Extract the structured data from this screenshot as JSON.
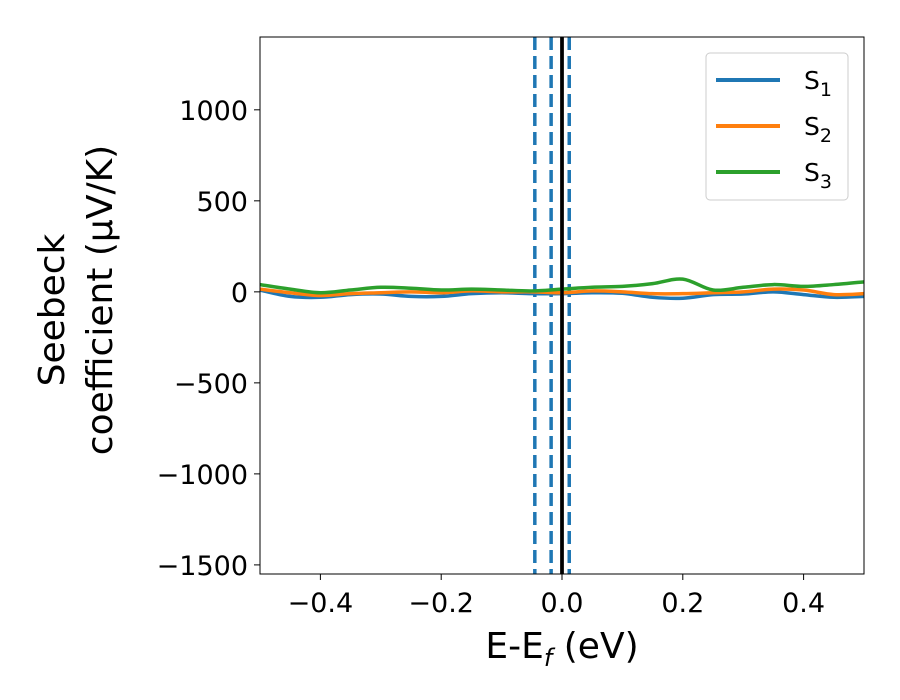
{
  "chart_data": {
    "type": "line",
    "xlabel": "E-E",
    "xlabel_sub": "f",
    "xlabel_unit": " (eV)",
    "ylabel_line1": "Seebeck",
    "ylabel_line2": "coefficient  (μV/K)",
    "xlim": [
      -0.5,
      0.5
    ],
    "ylim": [
      -1550,
      1400
    ],
    "xticks": [
      -0.4,
      -0.2,
      0.0,
      0.2,
      0.4
    ],
    "xtick_labels": [
      "−0.4",
      "−0.2",
      "0.0",
      "0.2",
      "0.4"
    ],
    "yticks": [
      -1500,
      -1000,
      -500,
      0,
      500,
      1000
    ],
    "ytick_labels": [
      "−1500",
      "−1000",
      "−500",
      "0",
      "500",
      "1000"
    ],
    "grid": false,
    "legend_position": "top-right",
    "vlines": [
      {
        "x": -0.045,
        "style": "dashed",
        "color": "#1f77b4"
      },
      {
        "x": -0.018,
        "style": "dashed",
        "color": "#1f77b4"
      },
      {
        "x": 0.012,
        "style": "dashed",
        "color": "#1f77b4"
      },
      {
        "x": 0.0,
        "style": "solid",
        "color": "#000000"
      }
    ],
    "series": [
      {
        "name": "S",
        "sub": "1",
        "color": "#1f77b4",
        "x": [
          -0.5,
          -0.45,
          -0.4,
          -0.35,
          -0.3,
          -0.25,
          -0.2,
          -0.15,
          -0.1,
          -0.05,
          0.0,
          0.05,
          0.1,
          0.15,
          0.2,
          0.25,
          0.3,
          0.35,
          0.4,
          0.45,
          0.5
        ],
        "y": [
          10,
          -25,
          -30,
          -15,
          -12,
          -25,
          -25,
          -10,
          -5,
          -10,
          -10,
          -5,
          -8,
          -30,
          -35,
          -15,
          -12,
          0,
          -15,
          -30,
          -25
        ]
      },
      {
        "name": "S",
        "sub": "2",
        "color": "#ff7f0e",
        "x": [
          -0.5,
          -0.45,
          -0.4,
          -0.35,
          -0.3,
          -0.25,
          -0.2,
          -0.15,
          -0.1,
          -0.05,
          0.0,
          0.05,
          0.1,
          0.15,
          0.2,
          0.25,
          0.3,
          0.35,
          0.4,
          0.45,
          0.5
        ],
        "y": [
          15,
          -5,
          -20,
          -10,
          -5,
          0,
          -5,
          5,
          0,
          0,
          -5,
          5,
          0,
          -10,
          -10,
          -5,
          0,
          15,
          10,
          -15,
          -10
        ]
      },
      {
        "name": "S",
        "sub": "3",
        "color": "#2ca02c",
        "x": [
          -0.5,
          -0.45,
          -0.4,
          -0.35,
          -0.3,
          -0.25,
          -0.2,
          -0.15,
          -0.1,
          -0.05,
          0.0,
          0.05,
          0.1,
          0.15,
          0.2,
          0.25,
          0.3,
          0.35,
          0.4,
          0.45,
          0.5
        ],
        "y": [
          40,
          15,
          -5,
          10,
          25,
          20,
          10,
          15,
          10,
          5,
          15,
          25,
          30,
          45,
          70,
          10,
          25,
          40,
          30,
          40,
          55
        ]
      }
    ]
  }
}
